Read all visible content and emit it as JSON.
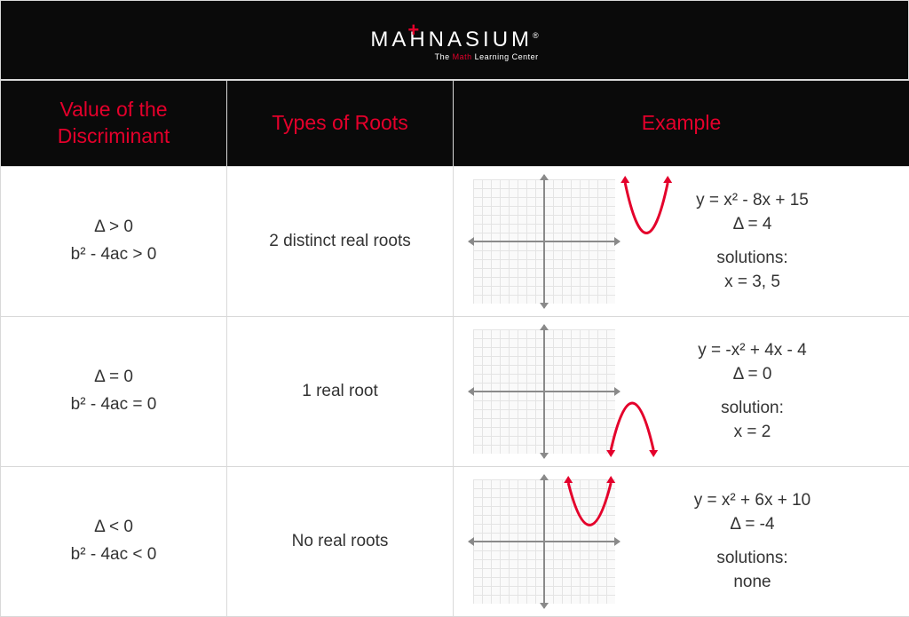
{
  "brand": {
    "name_left": "M",
    "name_right": "HNASIUM",
    "registered": "®",
    "tagline_pre": "The ",
    "tagline_red": "Math",
    "tagline_post": " Learning Center"
  },
  "accent_color": "#e4002b",
  "headers": {
    "discriminant": "Value of the Discriminant",
    "roots": "Types of Roots",
    "example": "Example"
  },
  "rows": [
    {
      "delta": "Δ > 0",
      "formula": "b² - 4ac > 0",
      "roots": "2 distinct real roots",
      "equation": "y = x² - 8x + 15",
      "delta_val": "Δ = 4",
      "solution_label": "solutions:",
      "solution": "x = 3, 5",
      "graph": {
        "orientation": "up",
        "vertex_y": 0.55,
        "vertex_x": 0.72,
        "crosses": true
      }
    },
    {
      "delta": "Δ = 0",
      "formula": "b² - 4ac = 0",
      "roots": "1 real root",
      "equation": "y = -x² + 4x - 4",
      "delta_val": "Δ = 0",
      "solution_label": "solution:",
      "solution": "x = 2",
      "graph": {
        "orientation": "down",
        "vertex_y": 0.5,
        "vertex_x": 0.62,
        "crosses": false
      }
    },
    {
      "delta": "Δ < 0",
      "formula": "b² - 4ac < 0",
      "roots": "No real roots",
      "equation": "y = x² + 6x + 10",
      "delta_val": "Δ = -4",
      "solution_label": "solutions:",
      "solution": "none",
      "graph": {
        "orientation": "up",
        "vertex_y": 0.42,
        "vertex_x": 0.32,
        "crosses": false
      }
    }
  ]
}
